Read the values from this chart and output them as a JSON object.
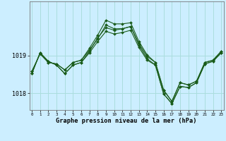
{
  "title": "Graphe pression niveau de la mer (hPa)",
  "background_color": "#cceeff",
  "grid_color": "#aadddd",
  "line_color": "#1a5c1a",
  "x_ticks": [
    0,
    1,
    2,
    3,
    4,
    5,
    6,
    7,
    8,
    9,
    10,
    11,
    12,
    13,
    14,
    15,
    16,
    17,
    18,
    19,
    20,
    21,
    22,
    23
  ],
  "y_ticks": [
    1018,
    1019
  ],
  "ylim": [
    1017.55,
    1020.45
  ],
  "xlim": [
    -0.3,
    23.3
  ],
  "line1": [
    1018.58,
    1019.05,
    1018.82,
    1018.78,
    1018.62,
    1018.82,
    1018.88,
    1019.15,
    1019.45,
    1019.82,
    1019.72,
    1019.72,
    1019.78,
    1019.32,
    1018.98,
    1018.82,
    1018.08,
    1017.78,
    1018.28,
    1018.22,
    1018.32,
    1018.82,
    1018.88,
    1019.12
  ],
  "line2": [
    1018.58,
    1019.05,
    1018.82,
    1018.78,
    1018.62,
    1018.82,
    1018.88,
    1019.2,
    1019.55,
    1019.95,
    1019.85,
    1019.85,
    1019.88,
    1019.38,
    1019.02,
    1018.82,
    1018.08,
    1017.78,
    1018.28,
    1018.22,
    1018.32,
    1018.82,
    1018.88,
    1019.12
  ],
  "line3": [
    1018.52,
    1019.08,
    1018.85,
    1018.75,
    1018.52,
    1018.75,
    1018.82,
    1019.08,
    1019.38,
    1019.65,
    1019.58,
    1019.62,
    1019.68,
    1019.22,
    1018.88,
    1018.75,
    1017.98,
    1017.72,
    1018.18,
    1018.15,
    1018.28,
    1018.78,
    1018.85,
    1019.08
  ],
  "line4": [
    1018.52,
    1019.08,
    1018.85,
    1018.75,
    1018.52,
    1018.75,
    1018.82,
    1019.12,
    1019.48,
    1019.75,
    1019.68,
    1019.72,
    1019.78,
    1019.28,
    1018.92,
    1018.75,
    1017.98,
    1017.72,
    1018.18,
    1018.15,
    1018.28,
    1018.78,
    1018.85,
    1019.08
  ]
}
